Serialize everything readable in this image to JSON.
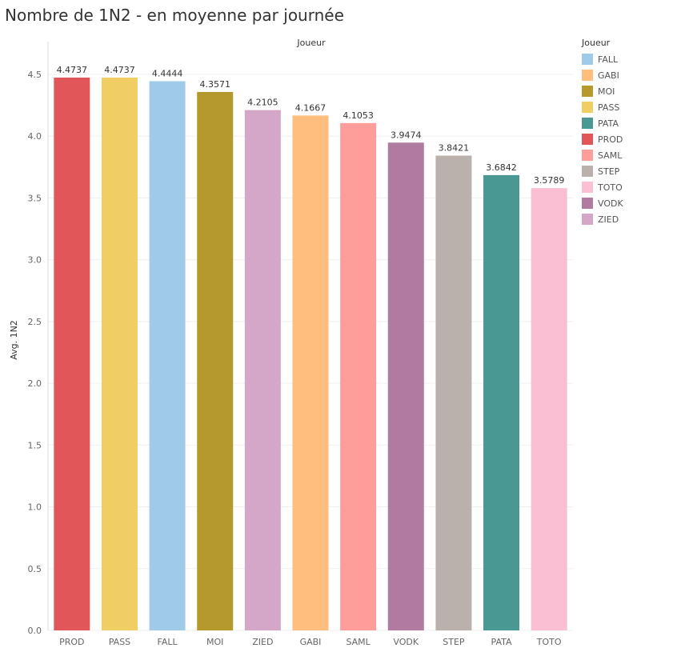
{
  "chart_data": {
    "type": "bar",
    "title": "Nombre de 1N2 - en moyenne par journée",
    "column_header": "Joueur",
    "xlabel": "",
    "ylabel": "Avg. 1N2",
    "ylim": [
      0,
      4.7
    ],
    "yticks": [
      "0.0",
      "0.5",
      "1.0",
      "1.5",
      "2.0",
      "2.5",
      "3.0",
      "3.5",
      "4.0",
      "4.5"
    ],
    "categories": [
      "PROD",
      "PASS",
      "FALL",
      "MOI",
      "ZIED",
      "GABI",
      "SAML",
      "VODK",
      "STEP",
      "PATA",
      "TOTO"
    ],
    "values": [
      4.4737,
      4.4737,
      4.4444,
      4.3571,
      4.2105,
      4.1667,
      4.1053,
      3.9474,
      3.8421,
      3.6842,
      3.5789
    ],
    "value_labels": [
      "4.4737",
      "4.4737",
      "4.4444",
      "4.3571",
      "4.2105",
      "4.1667",
      "4.1053",
      "3.9474",
      "3.8421",
      "3.6842",
      "3.5789"
    ],
    "colors": {
      "FALL": "#a0cbe8",
      "GABI": "#ffbe7d",
      "MOI": "#b6992d",
      "PASS": "#f1ce63",
      "PATA": "#499894",
      "PROD": "#e15759",
      "SAML": "#ff9d9a",
      "STEP": "#bab0ac",
      "TOTO": "#fabfd2",
      "VODK": "#b07aa1",
      "ZIED": "#d4a6c8"
    },
    "legend": {
      "title": "Joueur",
      "placement": "right",
      "entries": [
        "FALL",
        "GABI",
        "MOI",
        "PASS",
        "PATA",
        "PROD",
        "SAML",
        "STEP",
        "TOTO",
        "VODK",
        "ZIED"
      ]
    },
    "grid": true
  }
}
